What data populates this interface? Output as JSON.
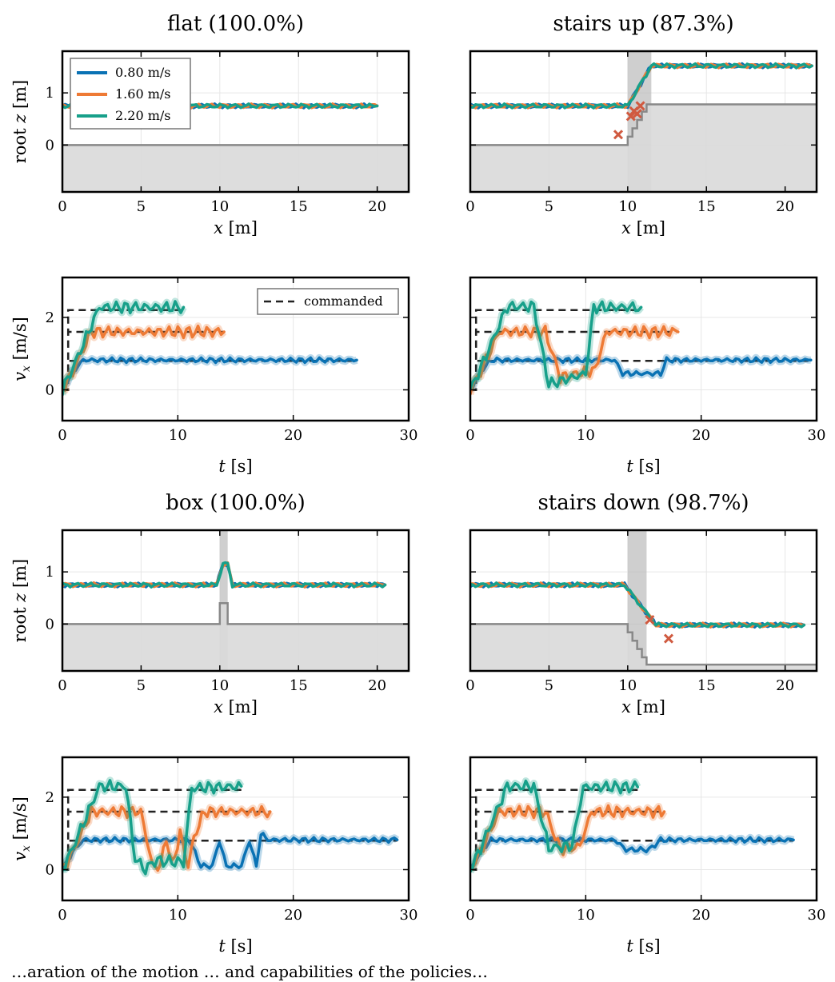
{
  "colors": {
    "v080": "#0a72b4",
    "v160": "#ee7a35",
    "v220": "#17a08a",
    "cmd": "#222222",
    "fall": "#d05a40",
    "terrain": "#888888",
    "terrain_fill": "#d9d9d9",
    "obstacle": "#bbbbbb"
  },
  "legend_speed": [
    "0.80 m/s",
    "1.60 m/s",
    "2.20 m/s"
  ],
  "legend_cmd": "commanded",
  "caption": "…aration of the motion … and capabilities of the policies…",
  "chart_data": [
    {
      "panel": "flat-z",
      "type": "line",
      "title": "flat (100.0%)",
      "xlabel": "x [m]",
      "ylabel": "root z [m]",
      "xlim": [
        0,
        22
      ],
      "ylim": [
        -0.9,
        1.8
      ],
      "xticks": [
        "0",
        "5",
        "10",
        "15",
        "20"
      ],
      "yticks": [
        "0",
        "1"
      ],
      "terrain": {
        "x": [
          0,
          22
        ],
        "y": [
          0,
          0
        ]
      },
      "series": [
        {
          "name": "0.80 m/s",
          "x": [
            0,
            20
          ],
          "y": [
            0.75,
            0.75
          ]
        },
        {
          "name": "1.60 m/s",
          "x": [
            0,
            20
          ],
          "y": [
            0.75,
            0.75
          ]
        },
        {
          "name": "2.20 m/s",
          "x": [
            0,
            20
          ],
          "y": [
            0.75,
            0.75
          ]
        }
      ]
    },
    {
      "panel": "stairs-up-z",
      "type": "line",
      "title": "stairs up (87.3%)",
      "xlabel": "x [m]",
      "ylabel": "",
      "xlim": [
        0,
        22
      ],
      "ylim": [
        -0.9,
        1.8
      ],
      "xticks": [
        "0",
        "5",
        "10",
        "15",
        "20"
      ],
      "yticks": [],
      "obstacle": [
        10,
        11.5
      ],
      "terrain": {
        "x": [
          0,
          10,
          10,
          10.3,
          10.3,
          10.6,
          10.6,
          10.9,
          10.9,
          11.2,
          11.2,
          22
        ],
        "y": [
          0,
          0,
          0.16,
          0.16,
          0.32,
          0.32,
          0.48,
          0.48,
          0.64,
          0.64,
          0.78,
          0.78
        ]
      },
      "falls": {
        "x": [
          9.4,
          10.2,
          10.4,
          10.6,
          10.8
        ],
        "y": [
          0.2,
          0.55,
          0.65,
          0.6,
          0.75
        ]
      },
      "series": [
        {
          "name": "0.80 m/s",
          "x": [
            0,
            10,
            11.5,
            21.7
          ],
          "y": [
            0.75,
            0.75,
            1.52,
            1.52
          ]
        },
        {
          "name": "1.60 m/s",
          "x": [
            0,
            10,
            11.5,
            21.7
          ],
          "y": [
            0.75,
            0.75,
            1.52,
            1.52
          ]
        },
        {
          "name": "2.20 m/s",
          "x": [
            0,
            10,
            11.5,
            21.7
          ],
          "y": [
            0.75,
            0.75,
            1.52,
            1.52
          ]
        }
      ]
    },
    {
      "panel": "flat-v",
      "type": "line",
      "title": "",
      "xlabel": "t [s]",
      "ylabel": "v_x [m/s]",
      "xlim": [
        0,
        30
      ],
      "ylim": [
        -0.85,
        3.1
      ],
      "xticks": [
        "0",
        "10",
        "20",
        "30"
      ],
      "yticks": [
        "0",
        "2"
      ],
      "commanded": [
        {
          "x": [
            0,
            0.5,
            0.5,
            25.5
          ],
          "y": [
            0,
            0,
            0.8,
            0.8
          ]
        },
        {
          "x": [
            0,
            0.5,
            0.5,
            14
          ],
          "y": [
            0,
            0,
            1.6,
            1.6
          ]
        },
        {
          "x": [
            0,
            0.5,
            0.5,
            10.5
          ],
          "y": [
            0,
            0,
            2.2,
            2.2
          ]
        }
      ],
      "series": [
        {
          "name": "0.80 m/s",
          "x": [
            0,
            0.9,
            1.8,
            25.5
          ],
          "y": [
            0,
            0.5,
            0.82,
            0.82
          ]
        },
        {
          "name": "1.60 m/s",
          "x": [
            0,
            0.9,
            2.5,
            14
          ],
          "y": [
            0,
            0.5,
            1.6,
            1.6
          ]
        },
        {
          "name": "2.20 m/s",
          "x": [
            0,
            0.9,
            3.2,
            10.5
          ],
          "y": [
            0,
            0.6,
            2.28,
            2.28
          ]
        }
      ]
    },
    {
      "panel": "stairs-up-v",
      "type": "line",
      "title": "",
      "xlabel": "t [s]",
      "ylabel": "",
      "xlim": [
        0,
        30
      ],
      "ylim": [
        -0.85,
        3.1
      ],
      "xticks": [
        "0",
        "10",
        "20",
        "30"
      ],
      "yticks": [],
      "commanded": [
        {
          "x": [
            0,
            0.5,
            0.5,
            29.5
          ],
          "y": [
            0,
            0,
            0.8,
            0.8
          ]
        },
        {
          "x": [
            0,
            0.5,
            0.5,
            18
          ],
          "y": [
            0,
            0,
            1.6,
            1.6
          ]
        },
        {
          "x": [
            0,
            0.5,
            0.5,
            14.8
          ],
          "y": [
            0,
            0,
            2.2,
            2.2
          ]
        }
      ],
      "series": [
        {
          "name": "0.80 m/s",
          "x": [
            0,
            0.9,
            1.8,
            12.5,
            13.2,
            16.5,
            17,
            29.5
          ],
          "y": [
            0,
            0.5,
            0.82,
            0.82,
            0.45,
            0.45,
            0.82,
            0.82
          ]
        },
        {
          "name": "1.60 m/s",
          "x": [
            0,
            0.9,
            2.5,
            6.5,
            7.8,
            10.8,
            11.8,
            18
          ],
          "y": [
            0,
            0.5,
            1.6,
            1.6,
            0.35,
            0.55,
            1.6,
            1.6
          ]
        },
        {
          "name": "2.20 m/s",
          "x": [
            0,
            0.9,
            3.2,
            5.5,
            6.8,
            10,
            10.7,
            14.8
          ],
          "y": [
            0,
            0.6,
            2.3,
            2.3,
            0.15,
            0.45,
            2.28,
            2.28
          ]
        }
      ]
    },
    {
      "panel": "box-z",
      "type": "line",
      "title": "box (100.0%)",
      "xlabel": "x [m]",
      "ylabel": "root z [m]",
      "xlim": [
        0,
        22
      ],
      "ylim": [
        -0.9,
        1.8
      ],
      "xticks": [
        "0",
        "5",
        "10",
        "15",
        "20"
      ],
      "yticks": [
        "0",
        "1"
      ],
      "obstacle": [
        10,
        10.5
      ],
      "terrain": {
        "x": [
          0,
          10,
          10,
          10.5,
          10.5,
          22
        ],
        "y": [
          0,
          0,
          0.4,
          0.4,
          0,
          0
        ]
      },
      "series": [
        {
          "name": "0.80 m/s",
          "x": [
            0,
            9.8,
            10.2,
            10.5,
            10.8,
            20.5
          ],
          "y": [
            0.75,
            0.75,
            1.15,
            1.15,
            0.75,
            0.75
          ]
        },
        {
          "name": "1.60 m/s",
          "x": [
            0,
            9.8,
            10.2,
            10.5,
            10.8,
            20.5
          ],
          "y": [
            0.75,
            0.75,
            1.15,
            1.15,
            0.75,
            0.75
          ]
        },
        {
          "name": "2.20 m/s",
          "x": [
            0,
            9.8,
            10.2,
            10.5,
            10.8,
            20.5
          ],
          "y": [
            0.75,
            0.75,
            1.15,
            1.15,
            0.75,
            0.75
          ]
        }
      ]
    },
    {
      "panel": "stairs-down-z",
      "type": "line",
      "title": "stairs down (98.7%)",
      "xlabel": "x [m]",
      "ylabel": "",
      "xlim": [
        0,
        22
      ],
      "ylim": [
        -0.9,
        1.8
      ],
      "xticks": [
        "0",
        "5",
        "10",
        "15",
        "20"
      ],
      "yticks": [],
      "obstacle": [
        10,
        11.2
      ],
      "terrain": {
        "x": [
          0,
          10,
          10,
          10.3,
          10.3,
          10.6,
          10.6,
          10.9,
          10.9,
          11.2,
          11.2,
          22
        ],
        "y": [
          0,
          0,
          -0.16,
          -0.16,
          -0.32,
          -0.32,
          -0.48,
          -0.48,
          -0.64,
          -0.64,
          -0.78,
          -0.78
        ]
      },
      "falls": {
        "x": [
          11.4,
          12.6
        ],
        "y": [
          0.08,
          -0.28
        ]
      },
      "series": [
        {
          "name": "0.80 m/s",
          "x": [
            0,
            9.8,
            11.8,
            21.2
          ],
          "y": [
            0.75,
            0.75,
            -0.02,
            -0.02
          ]
        },
        {
          "name": "1.60 m/s",
          "x": [
            0,
            9.8,
            11.8,
            21.2
          ],
          "y": [
            0.75,
            0.75,
            -0.02,
            -0.02
          ]
        },
        {
          "name": "2.20 m/s",
          "x": [
            0,
            9.8,
            11.8,
            21.2
          ],
          "y": [
            0.75,
            0.75,
            -0.02,
            -0.02
          ]
        }
      ]
    },
    {
      "panel": "box-v",
      "type": "line",
      "title": "",
      "xlabel": "t [s]",
      "ylabel": "v_x [m/s]",
      "xlim": [
        0,
        30
      ],
      "ylim": [
        -0.85,
        3.1
      ],
      "xticks": [
        "0",
        "10",
        "20",
        "30"
      ],
      "yticks": [
        "0",
        "2"
      ],
      "commanded": [
        {
          "x": [
            0,
            0.5,
            0.5,
            29
          ],
          "y": [
            0,
            0,
            0.8,
            0.8
          ]
        },
        {
          "x": [
            0,
            0.5,
            0.5,
            18
          ],
          "y": [
            0,
            0,
            1.6,
            1.6
          ]
        },
        {
          "x": [
            0,
            0.5,
            0.5,
            15.5
          ],
          "y": [
            0,
            0,
            2.2,
            2.2
          ]
        }
      ],
      "series": [
        {
          "name": "0.80 m/s",
          "x": [
            0,
            0.9,
            1.8,
            11,
            12,
            13,
            13.6,
            14.2,
            15.5,
            16.2,
            16.8,
            17.2,
            17.8,
            29
          ],
          "y": [
            0,
            0.5,
            0.82,
            0.82,
            0.1,
            0.1,
            0.8,
            0.1,
            0.1,
            0.8,
            0.1,
            1.0,
            0.82,
            0.82
          ]
        },
        {
          "name": "1.60 m/s",
          "x": [
            0,
            0.9,
            2.5,
            6.8,
            7.8,
            8.5,
            9,
            9.5,
            10.2,
            10.9,
            11.4,
            12.3,
            18
          ],
          "y": [
            0,
            0.5,
            1.6,
            1.6,
            0.1,
            0.1,
            0.9,
            0.1,
            1.0,
            0.1,
            0.9,
            1.6,
            1.6
          ]
        },
        {
          "name": "2.20 m/s",
          "x": [
            0,
            0.9,
            3.2,
            5.5,
            6.3,
            7.2,
            8,
            10.5,
            11.2,
            15.5
          ],
          "y": [
            0,
            0.6,
            2.3,
            2.3,
            0.3,
            0.0,
            0.25,
            0.2,
            2.25,
            2.3
          ]
        }
      ]
    },
    {
      "panel": "stairs-down-v",
      "type": "line",
      "title": "",
      "xlabel": "t [s]",
      "ylabel": "",
      "xlim": [
        0,
        30
      ],
      "ylim": [
        -0.85,
        3.1
      ],
      "xticks": [
        "0",
        "10",
        "20",
        "30"
      ],
      "yticks": [],
      "commanded": [
        {
          "x": [
            0,
            0.5,
            0.5,
            28
          ],
          "y": [
            0,
            0,
            0.8,
            0.8
          ]
        },
        {
          "x": [
            0,
            0.5,
            0.5,
            16.8
          ],
          "y": [
            0,
            0,
            1.6,
            1.6
          ]
        },
        {
          "x": [
            0,
            0.5,
            0.5,
            14.5
          ],
          "y": [
            0,
            0,
            2.2,
            2.2
          ]
        }
      ],
      "series": [
        {
          "name": "0.80 m/s",
          "x": [
            0,
            0.9,
            1.8,
            12.5,
            13.5,
            15.5,
            16.5,
            28
          ],
          "y": [
            0,
            0.5,
            0.82,
            0.82,
            0.55,
            0.55,
            0.82,
            0.82
          ]
        },
        {
          "name": "1.60 m/s",
          "x": [
            0,
            0.9,
            2.5,
            6.5,
            7.8,
            9.5,
            10.5,
            16.8
          ],
          "y": [
            0,
            0.5,
            1.6,
            1.6,
            0.55,
            0.65,
            1.6,
            1.6
          ]
        },
        {
          "name": "2.20 m/s",
          "x": [
            0,
            0.9,
            3.2,
            5.5,
            6.8,
            8.8,
            9.8,
            14.5
          ],
          "y": [
            0,
            0.6,
            2.3,
            2.3,
            0.6,
            0.65,
            2.28,
            2.28
          ]
        }
      ]
    }
  ]
}
